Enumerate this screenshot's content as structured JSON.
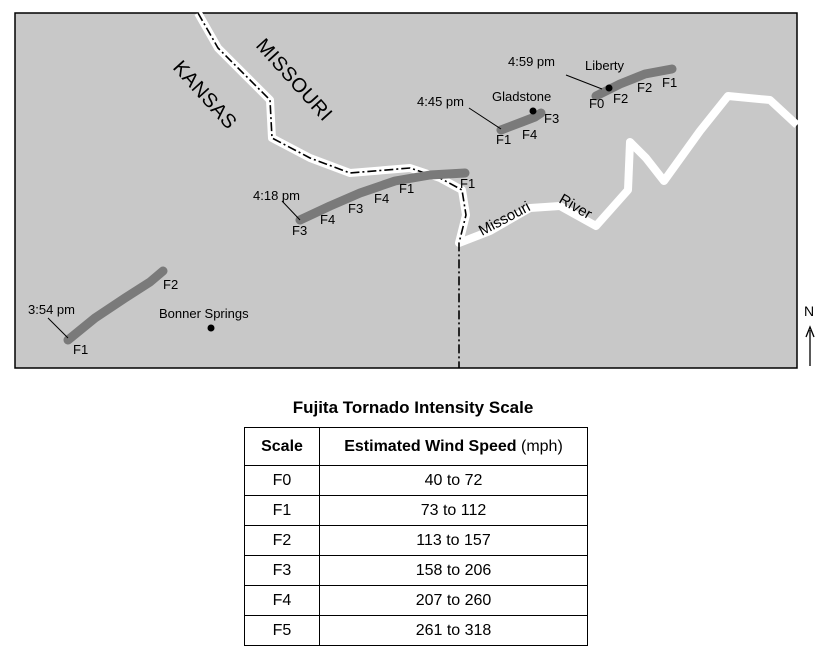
{
  "map": {
    "states": {
      "left": "KANSAS",
      "right": "MISSOURI"
    },
    "river_words": [
      "Missouri",
      "River"
    ],
    "places": [
      {
        "name": "Bonner Springs"
      },
      {
        "name": "Gladstone"
      },
      {
        "name": "Liberty"
      }
    ],
    "north_label": "N",
    "tracks": [
      {
        "time": "3:54 pm",
        "ratings": [
          "F1",
          "F2"
        ]
      },
      {
        "time": "4:18 pm",
        "ratings": [
          "F3",
          "F4",
          "F3",
          "F4",
          "F1",
          "F1"
        ]
      },
      {
        "time": "4:45 pm",
        "ratings": [
          "F1",
          "F4",
          "F3"
        ]
      },
      {
        "time": "4:59 pm",
        "ratings": [
          "F0",
          "F2",
          "F2",
          "F1"
        ]
      }
    ],
    "colors": {
      "land": "#c8c8c8",
      "track": "#7a7a7a",
      "river": "#ffffff",
      "border": "#000000"
    }
  },
  "table": {
    "title": "Fujita Tornado Intensity Scale",
    "headers": {
      "scale": "Scale",
      "speed": "Estimated Wind Speed",
      "unit": "(mph)"
    },
    "rows": [
      {
        "scale": "F0",
        "speed": "40 to 72"
      },
      {
        "scale": "F1",
        "speed": "73 to 112"
      },
      {
        "scale": "F2",
        "speed": "113 to 157"
      },
      {
        "scale": "F3",
        "speed": "158 to 206"
      },
      {
        "scale": "F4",
        "speed": "207 to 260"
      },
      {
        "scale": "F5",
        "speed": "261 to 318"
      }
    ]
  }
}
